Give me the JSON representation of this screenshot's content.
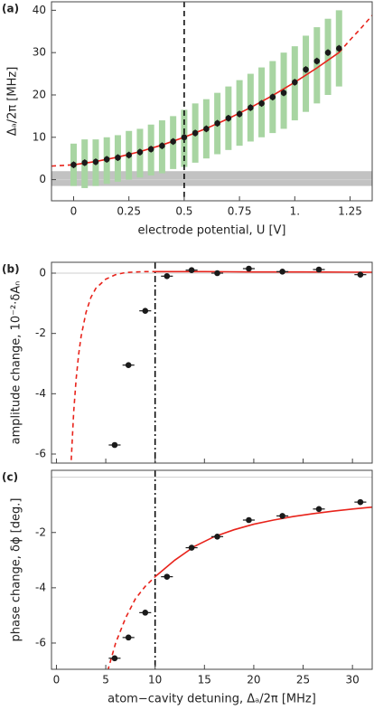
{
  "chart_data": [
    {
      "type": "scatter",
      "panel_label": "(a)",
      "x_label": "electrode potential, U [V]",
      "y_label": "Δₐ/2π [MHz]",
      "xlim": [
        -0.1,
        1.35
      ],
      "ylim": [
        -5,
        42
      ],
      "xticks": [
        0,
        0.25,
        0.5,
        0.75,
        {
          "value": 1,
          "label": "1."
        },
        1.25
      ],
      "yticks": [
        0,
        10,
        20,
        30,
        40
      ],
      "zero_line": true,
      "band": [
        -1.5,
        2
      ],
      "band_color": "#b3b3b3",
      "vline": {
        "x": 0.5,
        "dash": "6,4",
        "color": "#000000"
      },
      "ranges": {
        "color": "#a8d5a2",
        "low": [
          -1.5,
          -2,
          -1.5,
          -1,
          -0.5,
          0,
          0.5,
          1,
          1.5,
          2.5,
          3,
          4,
          5,
          6,
          7,
          8,
          9,
          10,
          11,
          12,
          14,
          16,
          18,
          20,
          22
        ],
        "high": [
          8.5,
          9.5,
          9.5,
          10,
          10.5,
          11.5,
          12,
          13,
          14,
          15,
          16.5,
          18,
          19,
          20.5,
          22,
          23.5,
          25,
          26.5,
          28,
          30,
          31.5,
          34,
          36,
          38,
          40
        ]
      },
      "fits": [
        {
          "x": [
            -0.1,
            -0.05,
            0
          ],
          "values": [
            3.2,
            3.35,
            3.5
          ],
          "dashed": true,
          "color": "#e8231b"
        },
        {
          "x": [
            0,
            0.1,
            0.2,
            0.3,
            0.4,
            0.5,
            0.6,
            0.7,
            0.8,
            0.9,
            1.0,
            1.1,
            1.2
          ],
          "values": [
            3.5,
            4.28,
            5.32,
            6.62,
            8.18,
            10.0,
            12.08,
            14.42,
            17.02,
            19.88,
            23.0,
            26.38,
            30.02
          ],
          "dashed": false,
          "color": "#e8231b"
        },
        {
          "x": [
            1.2,
            1.25,
            1.3,
            1.35
          ],
          "values": [
            30.02,
            33,
            35.8,
            38.8
          ],
          "dashed": true,
          "color": "#e8231b"
        }
      ],
      "points": {
        "color": "#1a1a1a",
        "x": [
          0,
          0.05,
          0.1,
          0.15,
          0.2,
          0.25,
          0.3,
          0.35,
          0.4,
          0.45,
          0.5,
          0.55,
          0.6,
          0.65,
          0.7,
          0.75,
          0.8,
          0.85,
          0.9,
          0.95,
          1.0,
          1.05,
          1.1,
          1.15,
          1.2
        ],
        "values": [
          3.5,
          4.0,
          4.2,
          4.8,
          5.2,
          5.8,
          6.5,
          7.2,
          8.0,
          9.0,
          10.0,
          11.0,
          12.0,
          13.3,
          14.5,
          15.5,
          17.0,
          18.0,
          19.5,
          20.5,
          23.0,
          26.0,
          28.0,
          30.0,
          31.0
        ],
        "yerr": [
          0.8,
          0.8,
          0.8,
          0.8,
          0.8,
          0.8,
          0.8,
          0.8,
          0.8,
          0.8,
          0.8,
          0.8,
          0.8,
          0.8,
          0.8,
          0.8,
          0.8,
          0.8,
          0.8,
          0.8,
          0.8,
          0.8,
          0.8,
          0.8,
          0.8
        ]
      }
    },
    {
      "type": "scatter",
      "panel_label": "(b)",
      "y_label": "amplitude change, 10⁻²·δAₙ",
      "xlim": [
        -0.5,
        32
      ],
      "ylim": [
        -6.3,
        0.36
      ],
      "xticks": [
        0,
        5,
        10,
        15,
        20,
        25,
        30
      ],
      "xtick_labels": false,
      "yticks": [
        0,
        -2,
        -4,
        -6
      ],
      "zero_line": true,
      "vline": {
        "x": 10,
        "dash": "7,3,2,3",
        "color": "#000000"
      },
      "fits": [
        {
          "x": [
            1.5,
            1.75,
            2,
            2.25,
            2.5,
            3,
            3.5,
            4,
            5,
            6,
            7,
            8,
            9,
            10
          ],
          "values": [
            -6.2,
            -4.6,
            -3.5,
            -2.7,
            -2.1,
            -1.3,
            -0.8,
            -0.5,
            -0.2,
            -0.05,
            0.02,
            0.04,
            0.05,
            0.05
          ],
          "dashed": true,
          "color": "#e8231b"
        },
        {
          "x": [
            10,
            15,
            20,
            25,
            32
          ],
          "values": [
            0.05,
            0.05,
            0.04,
            0.04,
            0.03
          ],
          "dashed": false,
          "color": "#e8231b"
        }
      ],
      "points": {
        "color": "#1a1a1a",
        "x": [
          5.9,
          7.3,
          9.0,
          11.2,
          13.7,
          16.3,
          19.5,
          22.9,
          26.6,
          30.8
        ],
        "values": [
          -5.7,
          -3.05,
          -1.25,
          -0.1,
          0.1,
          0.0,
          0.15,
          0.05,
          0.12,
          -0.05
        ],
        "xerr": [
          0.6,
          0.6,
          0.6,
          0.6,
          0.6,
          0.6,
          0.6,
          0.6,
          0.6,
          0.6
        ]
      }
    },
    {
      "type": "scatter",
      "panel_label": "(c)",
      "x_label": "atom−cavity detuning, Δₐ/2π [MHz]",
      "y_label": "phase change, δϕ [deg.]",
      "xlim": [
        -0.5,
        32
      ],
      "ylim": [
        -6.95,
        0.25
      ],
      "xticks": [
        0,
        5,
        10,
        15,
        20,
        25,
        30
      ],
      "yticks": [
        -2,
        -4,
        -6
      ],
      "zero_line": true,
      "vline": {
        "x": 10,
        "dash": "7,3,2,3",
        "color": "#000000"
      },
      "fits": [
        {
          "x": [
            5.2,
            6,
            7,
            8,
            9,
            10
          ],
          "values": [
            -7.0,
            -6.0,
            -5.1,
            -4.4,
            -3.95,
            -3.6
          ],
          "dashed": true,
          "color": "#e8231b"
        },
        {
          "x": [
            10,
            12,
            14,
            16,
            18,
            20,
            22,
            24,
            26,
            28,
            30,
            32
          ],
          "values": [
            -3.6,
            -3.0,
            -2.5,
            -2.15,
            -1.9,
            -1.7,
            -1.55,
            -1.42,
            -1.32,
            -1.23,
            -1.15,
            -1.08
          ],
          "dashed": false,
          "color": "#e8231b"
        }
      ],
      "points": {
        "color": "#1a1a1a",
        "x": [
          5.9,
          7.3,
          9.0,
          11.2,
          13.7,
          16.3,
          19.5,
          22.9,
          26.6,
          30.8
        ],
        "values": [
          -6.55,
          -5.8,
          -4.9,
          -3.6,
          -2.55,
          -2.15,
          -1.55,
          -1.4,
          -1.15,
          -0.9
        ],
        "xerr": [
          0.6,
          0.6,
          0.6,
          0.6,
          0.6,
          0.6,
          0.6,
          0.6,
          0.6,
          0.6
        ]
      }
    }
  ]
}
